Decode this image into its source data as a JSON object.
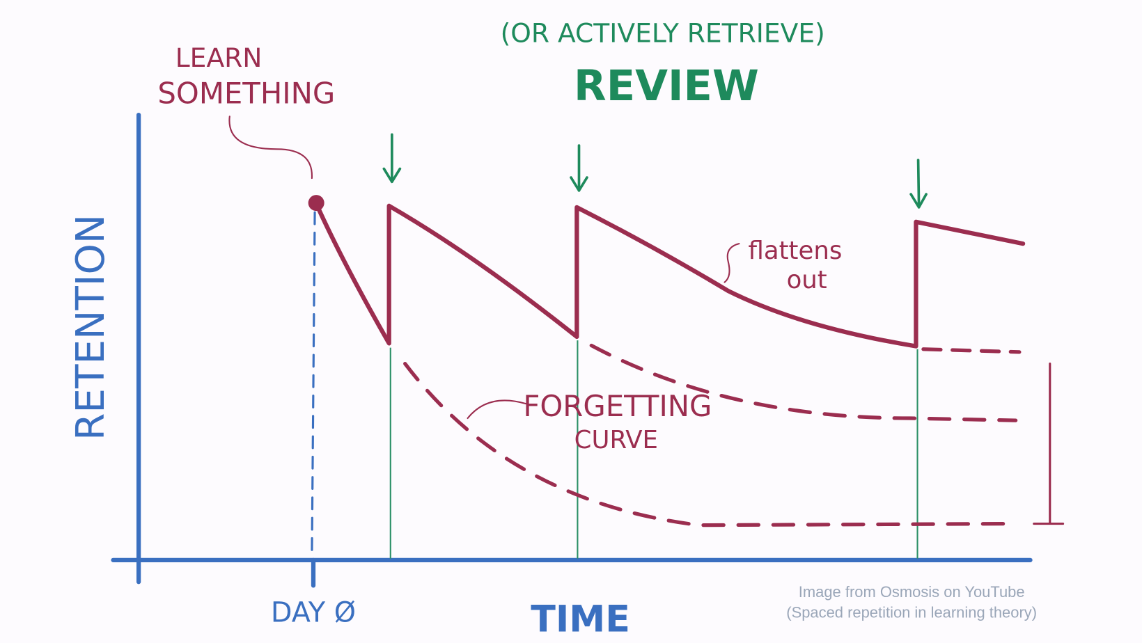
{
  "header": {
    "note": "(OR ACTIVELY RETRIEVE)",
    "title": "REVIEW"
  },
  "annotations": {
    "learn": [
      "LEARN",
      "SOMETHING"
    ],
    "flattens": [
      "flattens",
      "out"
    ],
    "forgetting": [
      "FORGETTING",
      "CURVE"
    ]
  },
  "axes": {
    "y_label": "RETENTION",
    "x_label": "TIME",
    "origin_label": "DAY Ø"
  },
  "credit": [
    "Image from Osmosis on YouTube",
    "(Spaced repetition in learning theory)"
  ]
}
